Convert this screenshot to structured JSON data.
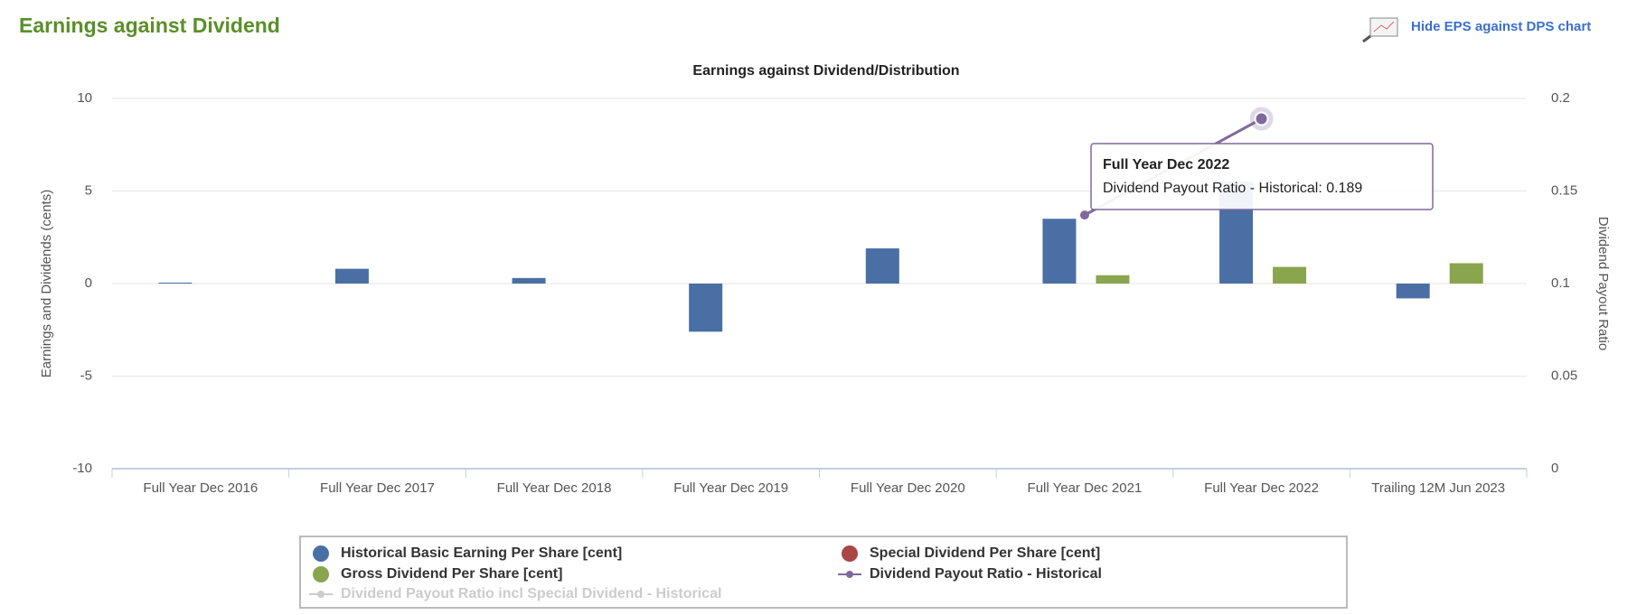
{
  "header": {
    "title": "Earnings against Dividend",
    "link": "Hide EPS against DPS chart"
  },
  "chart_data": {
    "type": "bar",
    "title": "Earnings against Dividend/Distribution",
    "y_label": "Earnings and Dividends (cents)",
    "y2_label": "Dividend Payout Ratio",
    "categories": [
      "Full Year Dec 2016",
      "Full Year Dec 2017",
      "Full Year Dec 2018",
      "Full Year Dec 2019",
      "Full Year Dec 2020",
      "Full Year Dec 2021",
      "Full Year Dec 2022",
      "Trailing 12M Jun 2023"
    ],
    "series": [
      {
        "name": "Historical Basic Earning Per Share [cent]",
        "color": "#4a6fa5",
        "type": "bar",
        "values": [
          0.05,
          0.8,
          0.3,
          -2.6,
          1.9,
          3.5,
          5.5,
          -0.8
        ]
      },
      {
        "name": "Special Dividend Per Share [cent]",
        "color": "#aa4643",
        "type": "bar",
        "values": [
          null,
          null,
          null,
          null,
          null,
          null,
          null,
          null
        ]
      },
      {
        "name": "Gross Dividend Per Share [cent]",
        "color": "#89a54e",
        "type": "bar",
        "values": [
          null,
          null,
          null,
          null,
          null,
          0.45,
          0.9,
          1.1
        ]
      },
      {
        "name": "Dividend Payout Ratio - Historical",
        "color": "#80699b",
        "type": "line",
        "axis": "y2",
        "values": [
          null,
          null,
          null,
          null,
          null,
          0.137,
          0.189,
          null
        ]
      },
      {
        "name": "Dividend Payout Ratio incl Special Dividend - Historical",
        "color": "#4572a7",
        "type": "line",
        "axis": "y2",
        "visible": false,
        "values": [
          null,
          null,
          null,
          null,
          null,
          null,
          null,
          null
        ]
      }
    ],
    "ylim": [
      -10,
      10
    ],
    "yticks": [
      -10,
      -5,
      0,
      5,
      10
    ],
    "y2lim": [
      0,
      0.2
    ],
    "y2ticks": [
      0,
      0.05,
      0.1,
      0.15,
      0.2
    ],
    "grid": true,
    "tooltip": {
      "title": "Full Year Dec 2022",
      "label": "Dividend Payout Ratio - Historical: 0.189"
    }
  }
}
